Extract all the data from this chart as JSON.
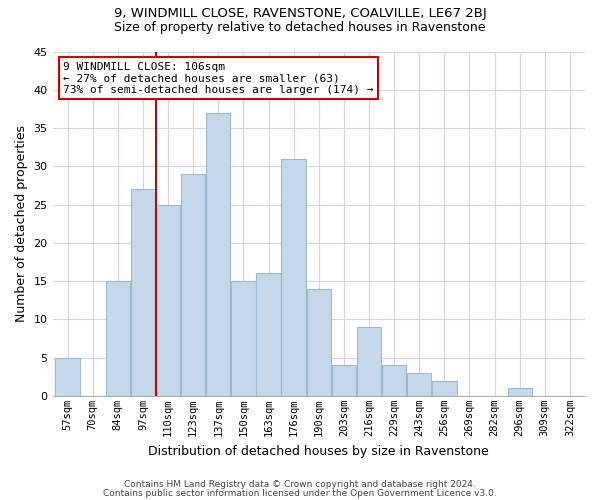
{
  "title1": "9, WINDMILL CLOSE, RAVENSTONE, COALVILLE, LE67 2BJ",
  "title2": "Size of property relative to detached houses in Ravenstone",
  "xlabel": "Distribution of detached houses by size in Ravenstone",
  "ylabel": "Number of detached properties",
  "bar_labels": [
    "57sqm",
    "70sqm",
    "84sqm",
    "97sqm",
    "110sqm",
    "123sqm",
    "137sqm",
    "150sqm",
    "163sqm",
    "176sqm",
    "190sqm",
    "203sqm",
    "216sqm",
    "229sqm",
    "243sqm",
    "256sqm",
    "269sqm",
    "282sqm",
    "296sqm",
    "309sqm",
    "322sqm"
  ],
  "bar_values": [
    5,
    0,
    15,
    27,
    25,
    29,
    37,
    15,
    16,
    31,
    14,
    4,
    9,
    4,
    3,
    2,
    0,
    0,
    1,
    0,
    0
  ],
  "bar_color": "#c5d8ea",
  "bar_edgecolor": "#9bb8cf",
  "vline_color": "#cc0000",
  "annotation_title": "9 WINDMILL CLOSE: 106sqm",
  "annotation_line1": "← 27% of detached houses are smaller (63)",
  "annotation_line2": "73% of semi-detached houses are larger (174) →",
  "annotation_box_edgecolor": "#cc0000",
  "ylim": [
    0,
    45
  ],
  "yticks": [
    0,
    5,
    10,
    15,
    20,
    25,
    30,
    35,
    40,
    45
  ],
  "footer1": "Contains HM Land Registry data © Crown copyright and database right 2024.",
  "footer2": "Contains public sector information licensed under the Open Government Licence v3.0."
}
